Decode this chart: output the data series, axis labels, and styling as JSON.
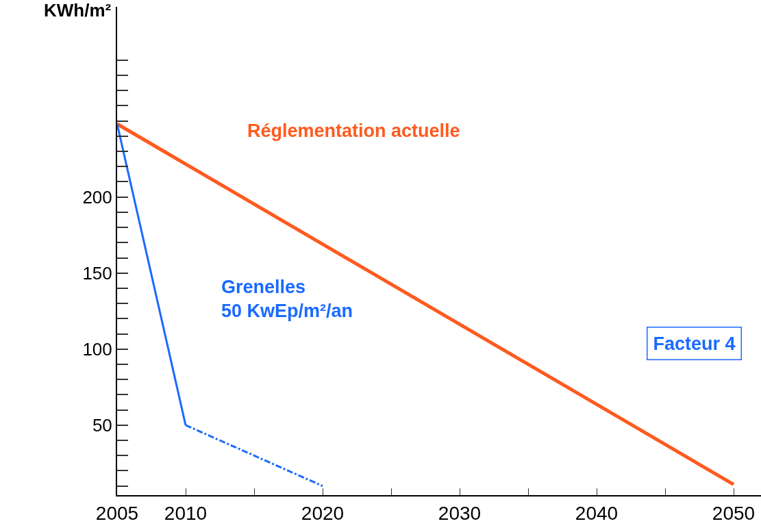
{
  "chart_data": {
    "type": "line",
    "ylabel": "KWh/m²",
    "xlim": [
      2005,
      2052
    ],
    "ylim": [
      4,
      325
    ],
    "xticks": [
      2005,
      2010,
      {
        "value": 2015,
        "label": null
      },
      2020,
      {
        "value": 2025,
        "label": null
      },
      2030,
      {
        "value": 2035,
        "label": null
      },
      2040,
      {
        "value": 2045,
        "label": null
      },
      2050
    ],
    "yticks": [
      {
        "value": 10,
        "label": null
      },
      {
        "value": 20,
        "label": null
      },
      {
        "value": 30,
        "label": null
      },
      {
        "value": 40,
        "label": null
      },
      50,
      {
        "value": 60,
        "label": null
      },
      {
        "value": 70,
        "label": null
      },
      {
        "value": 80,
        "label": null
      },
      {
        "value": 90,
        "label": null
      },
      100,
      {
        "value": 110,
        "label": null
      },
      {
        "value": 120,
        "label": null
      },
      {
        "value": 130,
        "label": null
      },
      {
        "value": 140,
        "label": null
      },
      150,
      {
        "value": 160,
        "label": null
      },
      {
        "value": 170,
        "label": null
      },
      {
        "value": 180,
        "label": null
      },
      {
        "value": 190,
        "label": null
      },
      200,
      {
        "value": 210,
        "label": null
      },
      {
        "value": 220,
        "label": null
      },
      {
        "value": 230,
        "label": null
      },
      {
        "value": 240,
        "label": null
      },
      {
        "value": 250,
        "label": null
      },
      {
        "value": 260,
        "label": null
      },
      {
        "value": 270,
        "label": null
      },
      {
        "value": 280,
        "label": null
      },
      {
        "value": 290,
        "label": null
      }
    ],
    "legend": false,
    "marker": "none",
    "series": [
      {
        "name": "Réglementation actuelle",
        "color": "#ff5a1f",
        "x": [
          2005,
          2050
        ],
        "values": [
          248,
          11
        ]
      },
      {
        "name": "Grenelles\n50 KwEp/m²/an",
        "color": "#1a6aff",
        "x": [
          2005,
          2010
        ],
        "values": [
          248,
          50
        ]
      },
      {
        "color": "#1a6aff",
        "x": [
          2010,
          2020
        ],
        "values": [
          50,
          10
        ],
        "line_style": "dashed"
      }
    ],
    "annotations": [
      "Facteur 4"
    ]
  }
}
